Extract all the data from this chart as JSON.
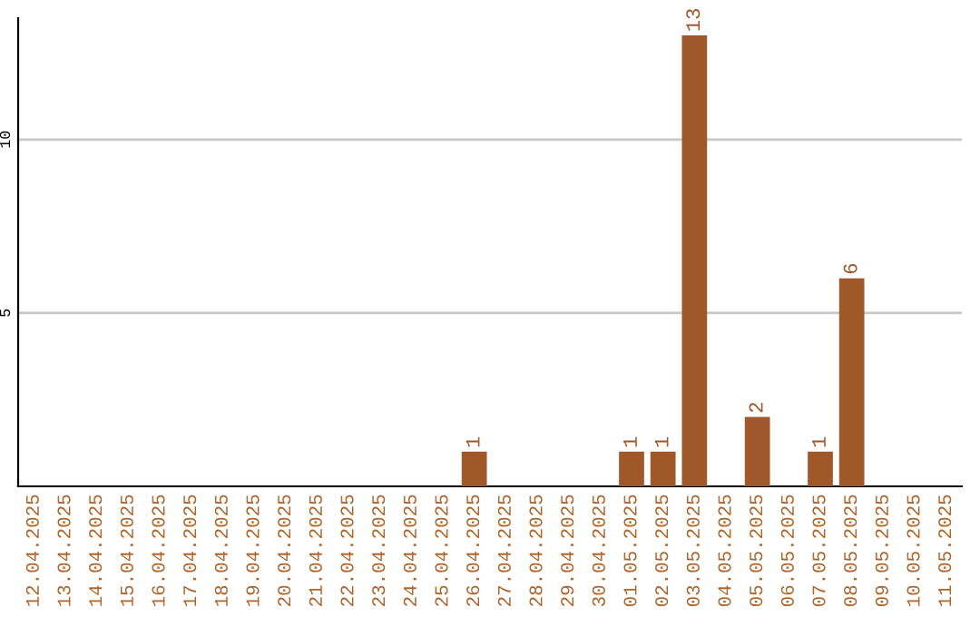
{
  "chart_data": {
    "type": "bar",
    "categories": [
      "12.04.2025",
      "13.04.2025",
      "14.04.2025",
      "15.04.2025",
      "16.04.2025",
      "17.04.2025",
      "18.04.2025",
      "19.04.2025",
      "20.04.2025",
      "21.04.2025",
      "22.04.2025",
      "23.04.2025",
      "24.04.2025",
      "25.04.2025",
      "26.04.2025",
      "27.04.2025",
      "28.04.2025",
      "29.04.2025",
      "30.04.2025",
      "01.05.2025",
      "02.05.2025",
      "03.05.2025",
      "04.05.2025",
      "05.05.2025",
      "06.05.2025",
      "07.05.2025",
      "08.05.2025",
      "09.05.2025",
      "10.05.2025",
      "11.05.2025"
    ],
    "values": [
      0,
      0,
      0,
      0,
      0,
      0,
      0,
      0,
      0,
      0,
      0,
      0,
      0,
      0,
      1,
      0,
      0,
      0,
      0,
      1,
      1,
      13,
      0,
      2,
      0,
      1,
      6,
      0,
      0,
      0
    ],
    "value_labels": [
      null,
      null,
      null,
      null,
      null,
      null,
      null,
      null,
      null,
      null,
      null,
      null,
      null,
      null,
      "1",
      null,
      null,
      null,
      null,
      "1",
      "1",
      "13",
      null,
      "2",
      null,
      "1",
      "6",
      null,
      null,
      null
    ],
    "color": "#a0572a",
    "ylim": [
      0,
      13.5
    ],
    "yticks": [
      5,
      10
    ],
    "grid": "y",
    "legend": false
  }
}
